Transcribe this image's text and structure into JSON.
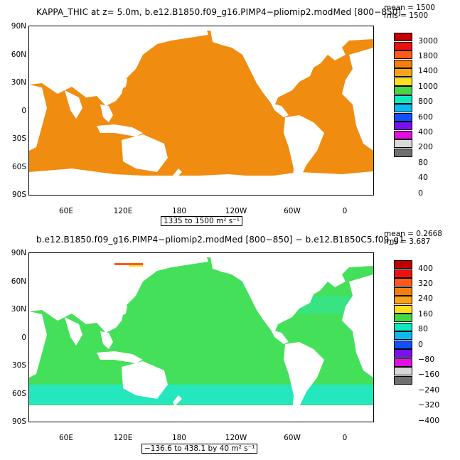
{
  "panel1": {
    "title": "KAPPA_THIC at z=     5.0m, b.e12.B1850.f09_g16.PIMP4−pliomip2.modMed [800−850]",
    "mean": "mean = 1500",
    "rms": "rms = 1500",
    "lat_labels": [
      "90N",
      "60N",
      "30N",
      "0",
      "30S",
      "60S",
      "90S"
    ],
    "lon_labels": [
      "60E",
      "120E",
      "180",
      "120W",
      "60W",
      "0"
    ],
    "range_label": "1335 to 1500 m² s⁻¹",
    "colorbar_labels": [
      "3000",
      "1800",
      "1400",
      "1000",
      "800",
      "600",
      "400",
      "200",
      "80",
      "40",
      "0"
    ],
    "colorbar_colors": [
      "#c00000",
      "#ee1010",
      "#ff5a1a",
      "#f07f10",
      "#f9a21a",
      "#ffe020",
      "#45d845",
      "#10e8c0",
      "#10b8f0",
      "#1050ff",
      "#7a10f0",
      "#e010e0",
      "#d8d8d8",
      "#707070"
    ],
    "ocean_color": "#f08c10"
  },
  "panel2": {
    "title": "b.e12.B1850.f09_g16.PIMP4−pliomip2.modMed [800−850] − b.e12.B1850C5.f09_g1",
    "mean": "mean = 0.2668",
    "rms": "rms = 3.687",
    "lat_labels": [
      "90N",
      "60N",
      "30N",
      "0",
      "30S",
      "60S",
      "90S"
    ],
    "lon_labels": [
      "60E",
      "120E",
      "180",
      "120W",
      "60W",
      "0"
    ],
    "range_label": "−136.6 to 438.1 by 40 m² s⁻¹",
    "colorbar_labels": [
      "400",
      "320",
      "240",
      "160",
      "80",
      "0",
      "−80",
      "−160",
      "−240",
      "−320",
      "−400"
    ],
    "colorbar_colors": [
      "#c00000",
      "#ee1010",
      "#ff5a1a",
      "#f07f10",
      "#f9a21a",
      "#ffe020",
      "#45d845",
      "#10e8c0",
      "#10b8f0",
      "#1050ff",
      "#7a10f0",
      "#e010e0",
      "#d8d8d8",
      "#707070"
    ],
    "ocean_color": "#45e05a",
    "speckle_color": "#20e8d0"
  }
}
